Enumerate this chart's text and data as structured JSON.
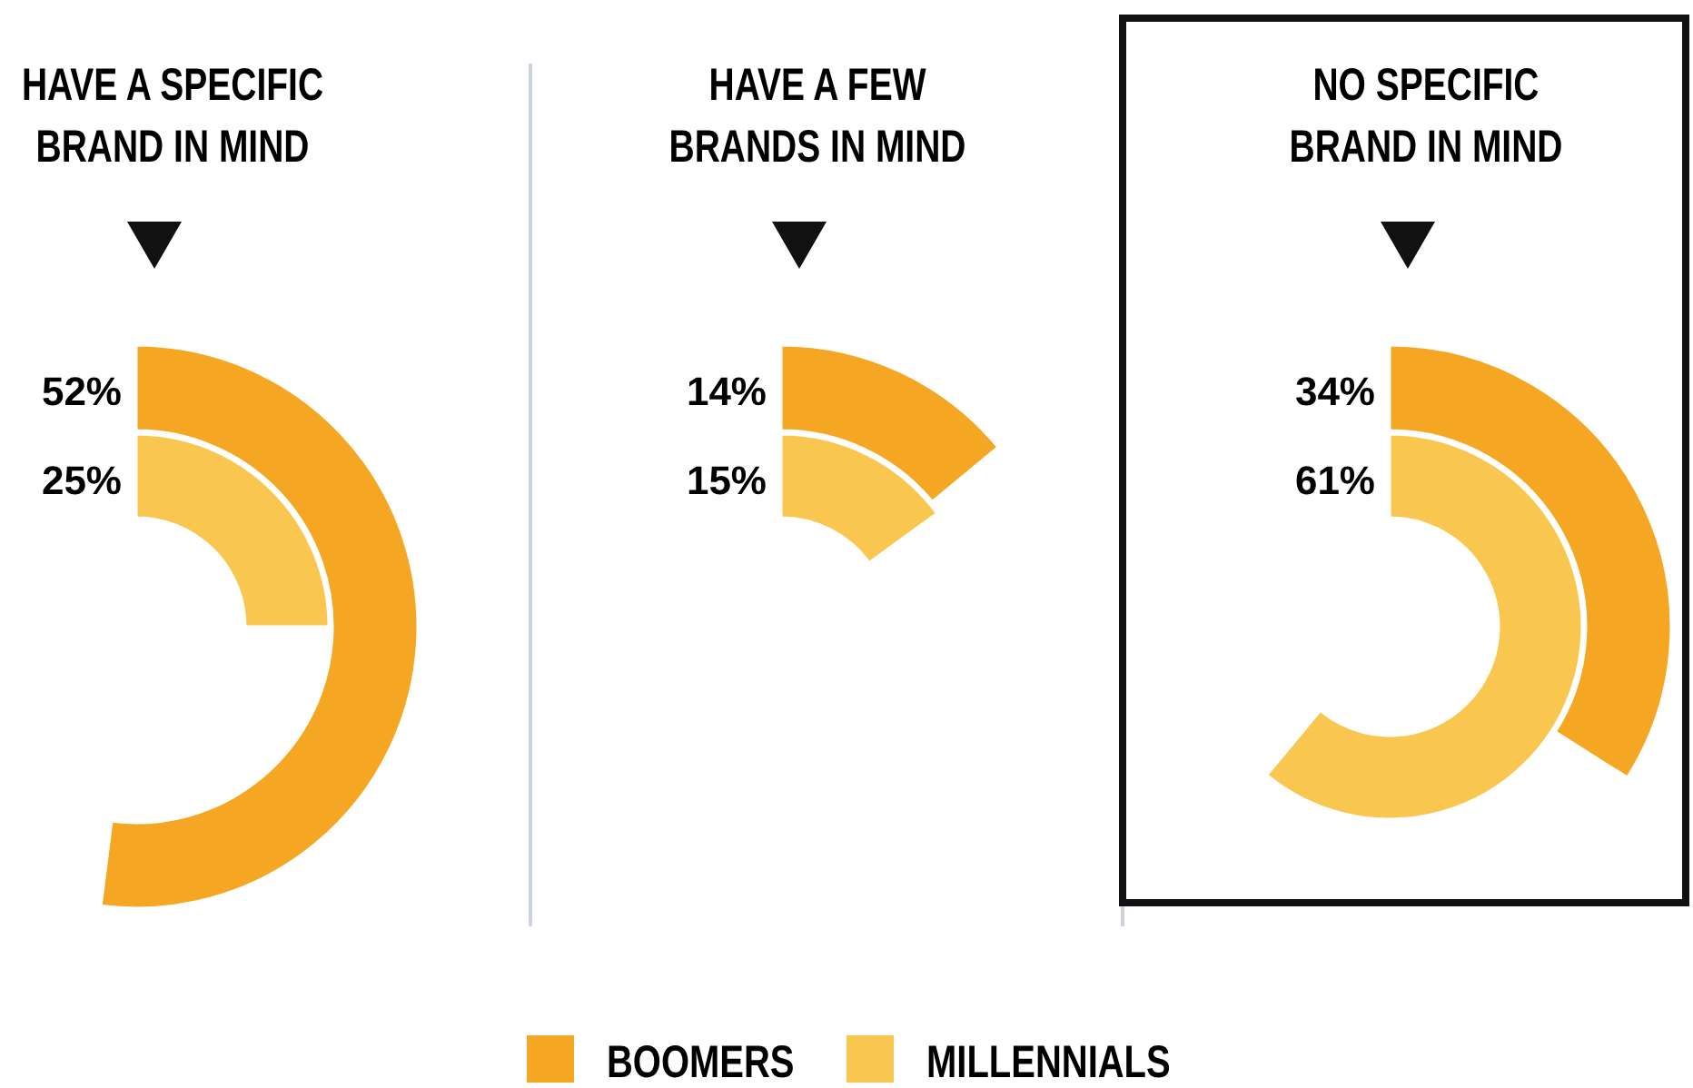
{
  "chart_data": {
    "type": "other",
    "categories": [
      "HAVE A SPECIFIC BRAND IN MIND",
      "HAVE A FEW BRANDS IN MIND",
      "NO SPECIFIC BRAND IN MIND"
    ],
    "series": [
      {
        "name": "BOOMERS",
        "color": "#f5a623",
        "values": [
          52,
          14,
          34
        ],
        "value_labels": [
          "52%",
          "14%",
          "34%"
        ]
      },
      {
        "name": "MILLENNIALS",
        "color": "#f9c74f",
        "values": [
          25,
          15,
          61
        ],
        "value_labels": [
          "25%",
          "15%",
          "61%"
        ]
      }
    ],
    "legend": "bottom"
  }
}
